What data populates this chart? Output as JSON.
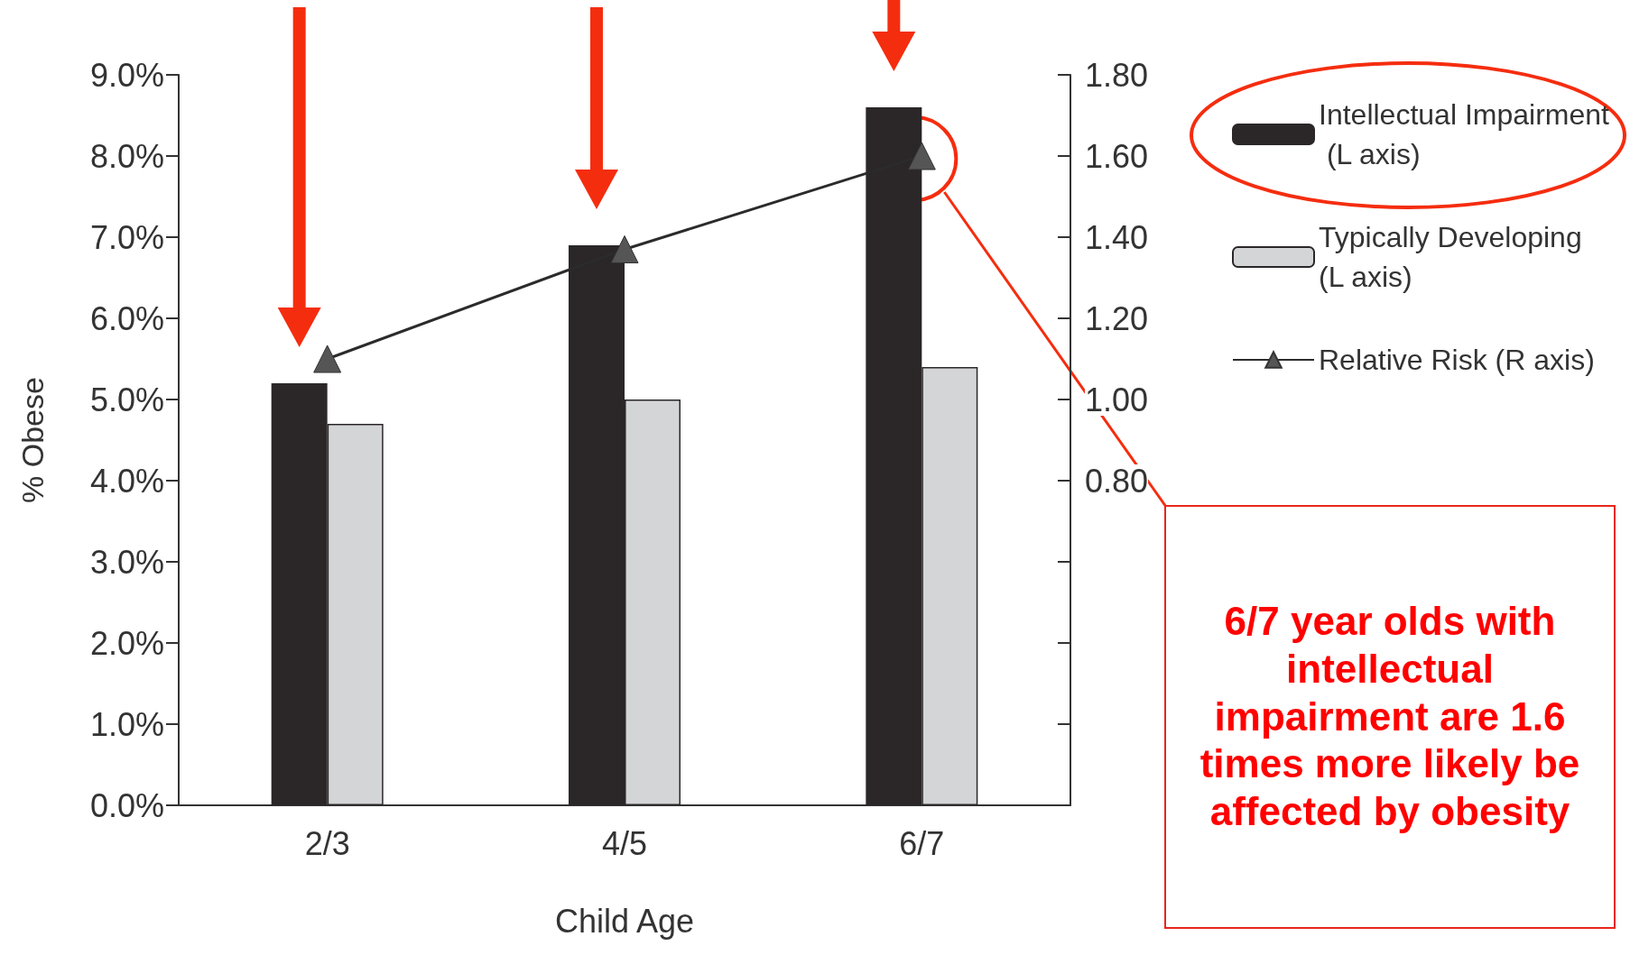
{
  "chart_data": {
    "type": "bar",
    "xlabel": "Child Age",
    "ylabel": "% Obese",
    "categories": [
      "2/3",
      "4/5",
      "6/7"
    ],
    "series": [
      {
        "name": "Intellectual Impairment (L axis)",
        "color": "#2b2728",
        "values": [
          5.2,
          6.9,
          8.6
        ]
      },
      {
        "name": "Typically Developing (L axis)",
        "color": "#d4d5d7",
        "values": [
          4.7,
          5.0,
          5.4
        ]
      },
      {
        "name": "Relative Risk (R axis)",
        "type": "line",
        "axis": "y2",
        "color": "#555555",
        "marker": "triangle",
        "values": [
          1.1,
          1.37,
          1.6
        ]
      }
    ],
    "ylim": [
      0,
      9
    ],
    "yticks": [
      {
        "value": 0,
        "label": "0.0%"
      },
      {
        "value": 1,
        "label": "1.0%"
      },
      {
        "value": 2,
        "label": "2.0%"
      },
      {
        "value": 3,
        "label": "3.0%"
      },
      {
        "value": 4,
        "label": "4.0%"
      },
      {
        "value": 5,
        "label": "5.0%"
      },
      {
        "value": 6,
        "label": "6.0%"
      },
      {
        "value": 7,
        "label": "7.0%"
      },
      {
        "value": 8,
        "label": "8.0%"
      },
      {
        "value": 9,
        "label": "9.0%"
      }
    ],
    "y2lim": [
      0,
      1.8
    ],
    "y2ticks": [
      {
        "value": 0,
        "label": null
      },
      {
        "value": 0.2,
        "label": null
      },
      {
        "value": 0.4,
        "label": null
      },
      {
        "value": 0.6,
        "label": null
      },
      {
        "value": 0.8,
        "label": "0.80"
      },
      {
        "value": 1,
        "label": "1.00"
      },
      {
        "value": 1.2,
        "label": "1.20"
      },
      {
        "value": 1.4,
        "label": "1.40"
      },
      {
        "value": 1.6,
        "label": "1.60"
      },
      {
        "value": 1.8,
        "label": "1.80"
      }
    ],
    "grid": false,
    "legend": "right",
    "annotations": [
      "6/7 year olds with intellectual impairment are 1.6 times more likely be affected by obesity"
    ]
  }
}
